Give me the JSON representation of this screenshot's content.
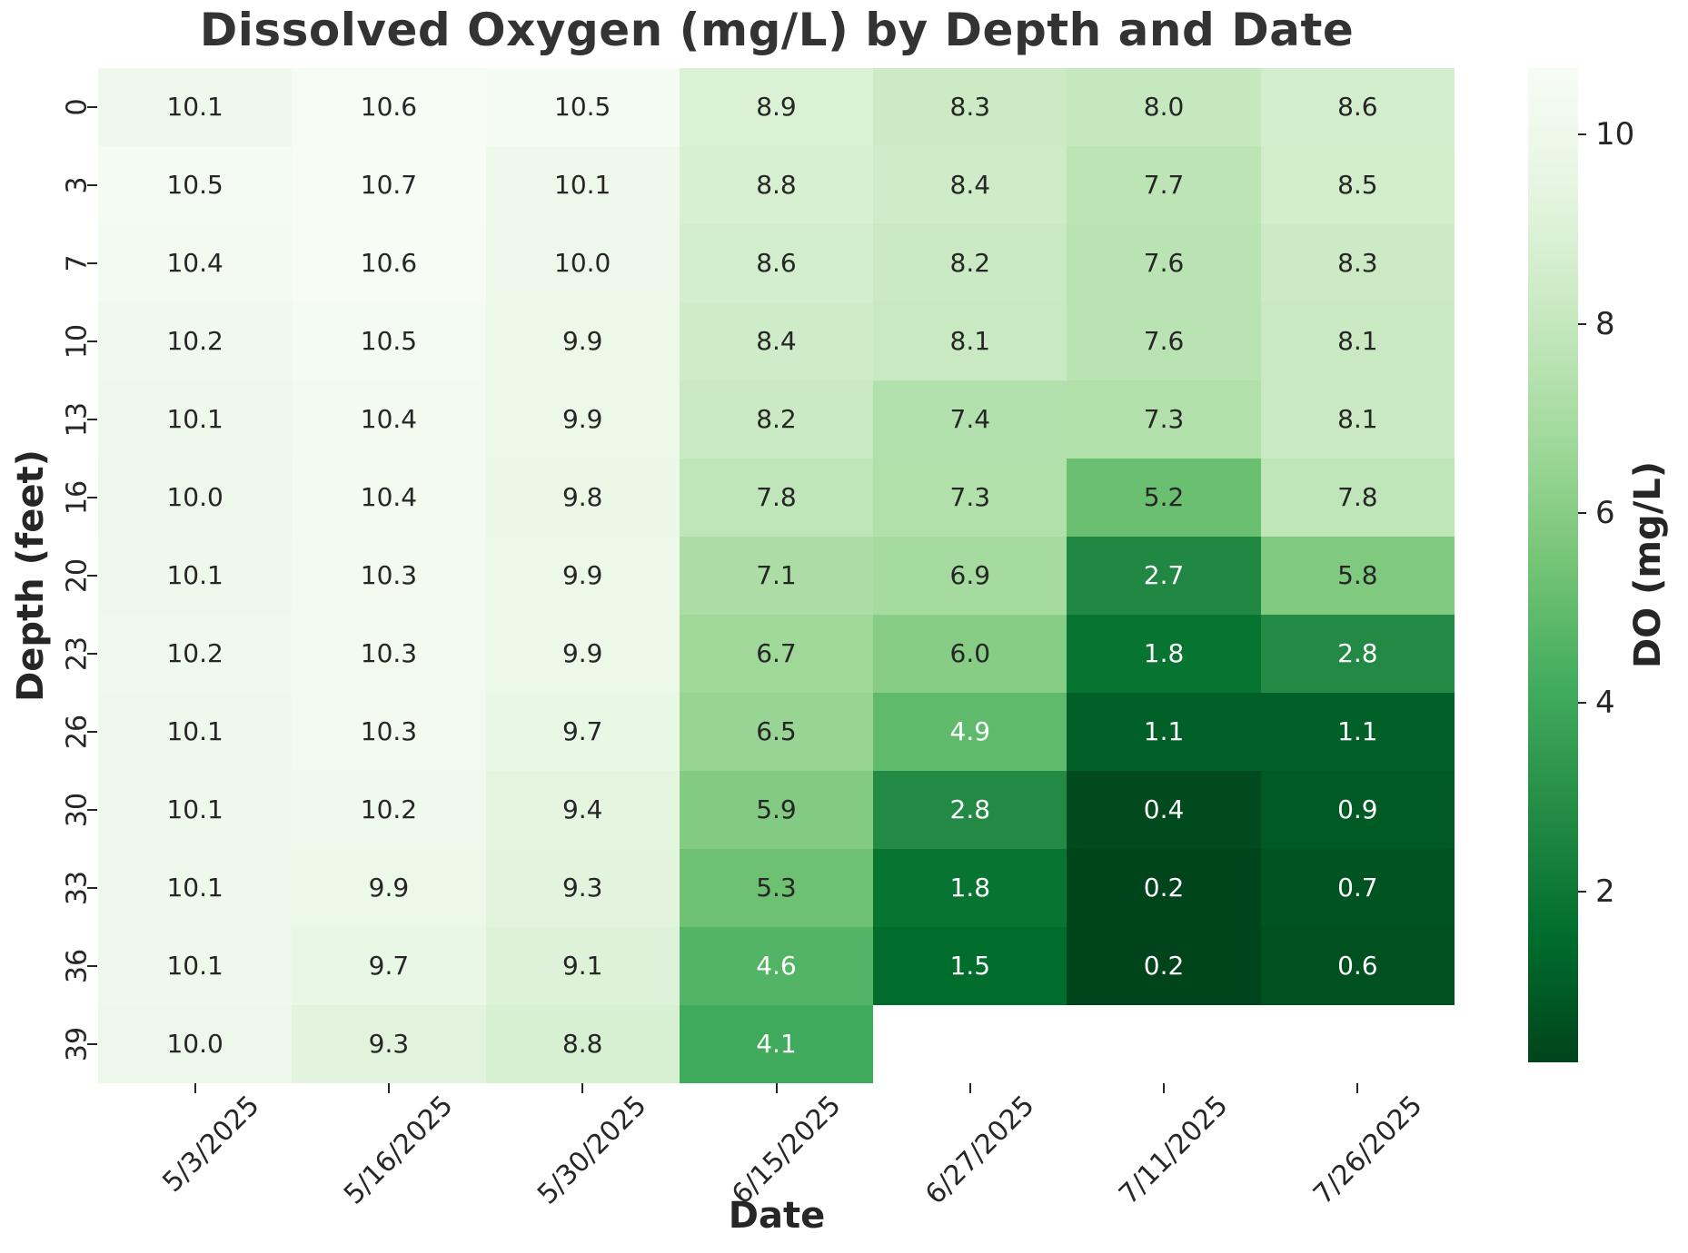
{
  "title": "Dissolved Oxygen (mg/L) by Depth and Date",
  "chart_data": {
    "type": "heatmap",
    "title": "Dissolved Oxygen (mg/L) by Depth and Date",
    "xlabel": "Date",
    "ylabel": "Depth (feet)",
    "x_categories": [
      "5/3/2025",
      "5/16/2025",
      "5/30/2025",
      "6/15/2025",
      "6/27/2025",
      "7/11/2025",
      "7/26/2025"
    ],
    "y_categories": [
      "0",
      "3",
      "7",
      "10",
      "13",
      "16",
      "20",
      "23",
      "26",
      "30",
      "33",
      "36",
      "39"
    ],
    "values": [
      [
        10.1,
        10.6,
        10.5,
        8.9,
        8.3,
        8.0,
        8.6
      ],
      [
        10.5,
        10.7,
        10.1,
        8.8,
        8.4,
        7.7,
        8.5
      ],
      [
        10.4,
        10.6,
        10.0,
        8.6,
        8.2,
        7.6,
        8.3
      ],
      [
        10.2,
        10.5,
        9.9,
        8.4,
        8.1,
        7.6,
        8.1
      ],
      [
        10.1,
        10.4,
        9.9,
        8.2,
        7.4,
        7.3,
        8.1
      ],
      [
        10.0,
        10.4,
        9.8,
        7.8,
        7.3,
        5.2,
        7.8
      ],
      [
        10.1,
        10.3,
        9.9,
        7.1,
        6.9,
        2.7,
        5.8
      ],
      [
        10.2,
        10.3,
        9.9,
        6.7,
        6.0,
        1.8,
        2.8
      ],
      [
        10.1,
        10.3,
        9.7,
        6.5,
        4.9,
        1.1,
        1.1
      ],
      [
        10.1,
        10.2,
        9.4,
        5.9,
        2.8,
        0.4,
        0.9
      ],
      [
        10.1,
        9.9,
        9.3,
        5.3,
        1.8,
        0.2,
        0.7
      ],
      [
        10.1,
        9.7,
        9.1,
        4.6,
        1.5,
        0.2,
        0.6
      ],
      [
        10.0,
        9.3,
        8.8,
        4.1,
        null,
        null,
        null
      ]
    ],
    "annotation_decimals": 1,
    "colorbar": {
      "label": "DO (mg/L)",
      "ticks": [
        10,
        8,
        6,
        4,
        2
      ],
      "vmin": 0.2,
      "vmax": 10.7
    },
    "colormap": {
      "name": "Greens (reversed: high value = light)",
      "anchors_light_to_dark": [
        "#f7fcf5",
        "#e5f5e0",
        "#c7e9c0",
        "#a1d99b",
        "#74c476",
        "#41ab5d",
        "#238b45",
        "#006d2c",
        "#00441b"
      ]
    },
    "annotation_text_colors": {
      "dark": "#262626",
      "light": "#ffffff"
    },
    "legend_position": "right",
    "grid": false
  },
  "layout_note_colors": {
    "background": "#ffffff",
    "tick_color": "#262626",
    "title_color": "#333333"
  }
}
